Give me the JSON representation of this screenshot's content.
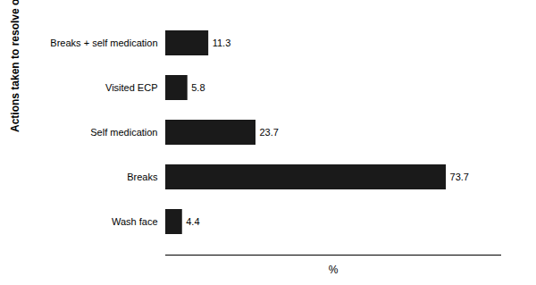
{
  "chart_data": {
    "type": "bar",
    "orientation": "horizontal",
    "categories": [
      "Wash face",
      "Breaks",
      "Self medication",
      "Visited ECP",
      "Breaks + self medication"
    ],
    "values": [
      4.4,
      73.7,
      23.7,
      5.8,
      11.3
    ],
    "color": "#1a1a1a",
    "xlabel": "%",
    "ylabel": "Actions taken to resolve ocular complaints",
    "xlim": [
      0,
      88
    ],
    "xticks": [],
    "tick_labels": "y",
    "data_labels": true,
    "grid": false
  }
}
